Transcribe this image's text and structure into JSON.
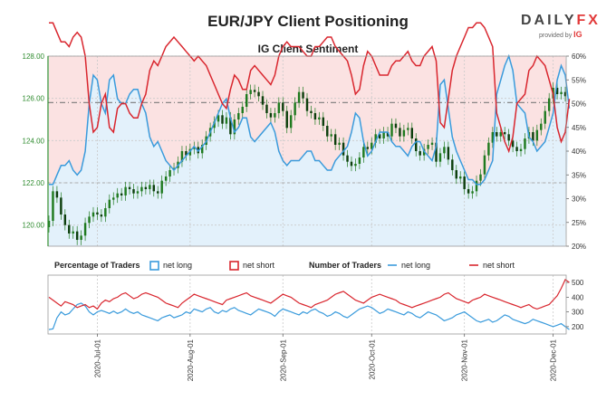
{
  "header": {
    "title": "EUR/JPY Client Positioning",
    "subtitle": "IG Client Sentiment",
    "logo_text_a": "DAILY",
    "logo_text_b": "FX",
    "logo_provided": "provided by",
    "logo_ig": "IG"
  },
  "legend": {
    "pct_title": "Percentage of Traders",
    "num_title": "Number of Traders",
    "net_long": "net long",
    "net_short": "net short"
  },
  "colors": {
    "long": "#3a9bdc",
    "short": "#d9262e",
    "long_fill": "#e3f1fb",
    "short_fill": "#fbe2e2",
    "price_axis": "#2e8b2e",
    "candle": "#1f7a1f"
  },
  "chart_data": [
    {
      "type": "candlestick",
      "title": "EUR/JPY Client Positioning",
      "subtitle": "IG Client Sentiment",
      "ylim": [
        119.0,
        128.0
      ],
      "yticks": [
        "120.00",
        "122.00",
        "124.00",
        "126.00",
        "128.00"
      ],
      "y2lim": [
        20,
        60
      ],
      "y2ticks": [
        "20%",
        "25%",
        "30%",
        "35%",
        "40%",
        "45%",
        "50%",
        "55%",
        "60%"
      ],
      "hlines": [
        125.8,
        122.0
      ],
      "price_close": [
        120.2,
        121.6,
        121.3,
        120.5,
        120.0,
        119.6,
        119.7,
        119.3,
        119.5,
        120.1,
        120.4,
        120.6,
        120.5,
        120.4,
        120.8,
        121.2,
        121.3,
        121.5,
        121.4,
        121.8,
        121.7,
        121.5,
        121.6,
        121.8,
        121.7,
        121.9,
        121.6,
        121.5,
        122.1,
        122.3,
        122.6,
        122.7,
        123.0,
        123.5,
        123.3,
        123.6,
        123.7,
        123.4,
        123.8,
        124.2,
        124.6,
        124.9,
        125.2,
        124.8,
        125.1,
        124.3,
        125.0,
        125.3,
        125.6,
        126.2,
        126.4,
        126.3,
        126.1,
        125.7,
        125.3,
        125.1,
        125.3,
        125.8,
        125.4,
        124.6,
        125.2,
        125.8,
        126.3,
        126.0,
        125.4,
        125.3,
        125.0,
        125.1,
        124.7,
        124.2,
        124.3,
        123.8,
        123.9,
        123.3,
        123.0,
        122.8,
        122.9,
        123.2,
        123.7,
        123.6,
        123.9,
        124.3,
        124.1,
        124.4,
        124.2,
        124.8,
        124.6,
        124.2,
        124.5,
        124.6,
        124.1,
        123.5,
        123.3,
        123.6,
        123.8,
        123.9,
        123.0,
        123.4,
        123.7,
        123.1,
        122.6,
        122.2,
        122.3,
        121.7,
        121.5,
        121.6,
        122.1,
        122.4,
        123.3,
        123.9,
        124.4,
        124.2,
        124.4,
        124.3,
        124.0,
        123.7,
        123.5,
        123.6,
        124.1,
        124.4,
        124.0,
        124.5,
        124.8,
        125.4,
        126.0,
        126.5,
        126.2,
        126.3,
        126.1
      ],
      "long_pct": [
        33,
        33,
        35,
        37,
        37,
        38,
        36,
        35,
        36,
        40,
        50,
        56,
        55,
        50,
        48,
        55,
        56,
        51,
        50,
        50,
        52,
        53,
        53,
        50,
        48,
        43,
        41,
        42,
        40,
        38,
        37,
        36,
        37,
        38,
        39,
        40,
        41,
        40,
        41,
        42,
        44,
        46,
        48,
        50,
        51,
        47,
        44,
        45,
        47,
        47,
        43,
        42,
        43,
        44,
        45,
        46,
        44,
        40,
        38,
        37,
        38,
        38,
        38,
        39,
        40,
        40,
        38,
        38,
        37,
        36,
        36,
        38,
        39,
        40,
        41,
        44,
        48,
        47,
        42,
        39,
        40,
        42,
        44,
        44,
        44,
        42,
        41,
        41,
        40,
        39,
        41,
        42,
        42,
        40,
        39,
        38,
        41,
        54,
        55,
        49,
        43,
        40,
        38,
        36,
        34,
        34,
        33,
        33,
        34,
        36,
        38,
        52,
        55,
        58,
        60,
        57,
        50,
        49,
        48,
        43,
        42,
        40,
        41,
        42,
        45,
        48,
        55,
        58,
        56,
        49
      ],
      "short_pct": [
        67,
        67,
        65,
        63,
        63,
        62,
        64,
        65,
        64,
        60,
        50,
        44,
        45,
        50,
        52,
        45,
        44,
        49,
        50,
        50,
        48,
        47,
        47,
        50,
        52,
        57,
        59,
        58,
        60,
        62,
        63,
        64,
        63,
        62,
        61,
        60,
        59,
        60,
        59,
        58,
        56,
        54,
        52,
        50,
        49,
        53,
        56,
        55,
        53,
        53,
        57,
        58,
        57,
        56,
        55,
        54,
        56,
        60,
        62,
        63,
        62,
        62,
        62,
        61,
        60,
        60,
        62,
        62,
        63,
        64,
        64,
        62,
        61,
        60,
        59,
        56,
        52,
        53,
        58,
        61,
        60,
        58,
        56,
        56,
        56,
        58,
        59,
        59,
        60,
        61,
        59,
        58,
        58,
        60,
        61,
        62,
        59,
        46,
        45,
        51,
        57,
        60,
        62,
        64,
        66,
        66,
        67,
        67,
        66,
        64,
        62,
        48,
        45,
        42,
        40,
        43,
        50,
        51,
        52,
        57,
        58,
        60,
        59,
        58,
        55,
        52,
        45,
        42,
        44,
        51
      ],
      "long_count": [
        180,
        185,
        260,
        300,
        280,
        290,
        320,
        350,
        360,
        340,
        300,
        280,
        300,
        310,
        300,
        290,
        305,
        290,
        300,
        320,
        300,
        290,
        300,
        280,
        270,
        260,
        250,
        240,
        260,
        270,
        280,
        260,
        270,
        280,
        300,
        290,
        320,
        310,
        300,
        320,
        330,
        300,
        290,
        310,
        300,
        320,
        330,
        310,
        300,
        290,
        280,
        300,
        320,
        310,
        300,
        290,
        270,
        300,
        320,
        310,
        300,
        290,
        280,
        300,
        290,
        310,
        320,
        300,
        290,
        270,
        280,
        300,
        290,
        270,
        260,
        280,
        300,
        320,
        330,
        340,
        330,
        310,
        290,
        300,
        320,
        310,
        300,
        290,
        280,
        300,
        290,
        270,
        260,
        280,
        300,
        290,
        280,
        260,
        240,
        250,
        260,
        280,
        290,
        300,
        280,
        260,
        240,
        230,
        240,
        250,
        230,
        240,
        260,
        280,
        270,
        250,
        240,
        230,
        220,
        230,
        250,
        240,
        230,
        220,
        210,
        200,
        210,
        220,
        200,
        180
      ],
      "short_count": [
        400,
        380,
        360,
        340,
        370,
        360,
        350,
        330,
        340,
        350,
        330,
        340,
        320,
        360,
        380,
        370,
        390,
        400,
        420,
        430,
        410,
        390,
        400,
        420,
        430,
        420,
        410,
        400,
        380,
        360,
        350,
        340,
        330,
        360,
        380,
        400,
        420,
        410,
        400,
        390,
        380,
        370,
        360,
        350,
        380,
        390,
        400,
        410,
        420,
        430,
        410,
        400,
        390,
        380,
        370,
        360,
        380,
        400,
        420,
        410,
        400,
        380,
        360,
        350,
        340,
        330,
        350,
        360,
        370,
        380,
        400,
        420,
        430,
        440,
        420,
        400,
        380,
        370,
        360,
        380,
        400,
        410,
        420,
        410,
        400,
        390,
        380,
        360,
        350,
        340,
        330,
        340,
        350,
        360,
        370,
        380,
        390,
        400,
        420,
        430,
        410,
        390,
        380,
        370,
        360,
        380,
        390,
        400,
        420,
        410,
        400,
        390,
        380,
        370,
        360,
        350,
        340,
        330,
        340,
        350,
        330,
        320,
        330,
        340,
        350,
        380,
        410,
        460,
        520,
        500
      ]
    },
    {
      "type": "line",
      "ylim": [
        150,
        550
      ],
      "yticks": [
        "200",
        "300",
        "400",
        "500"
      ]
    }
  ],
  "xaxis": {
    "labels": [
      "2020-Jul-01",
      "2020-Aug-01",
      "2020-Sep-01",
      "2020-Oct-01",
      "2020-Nov-01",
      "2020-Dec-01"
    ]
  }
}
